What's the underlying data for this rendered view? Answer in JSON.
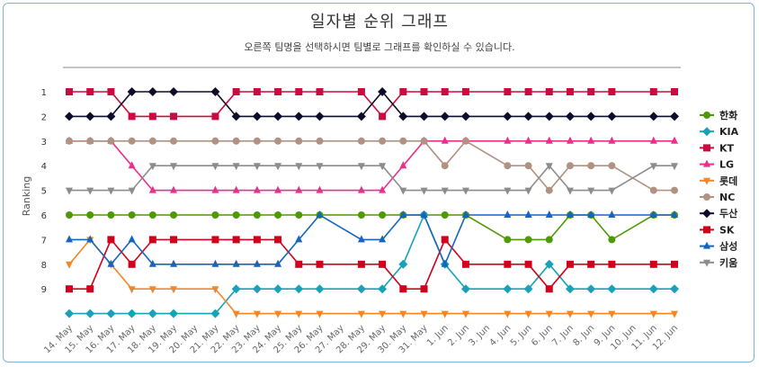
{
  "chart_data": {
    "type": "line",
    "title": "일자별 순위 그래프",
    "subtitle": "오른쪽 팀명을 선택하시면 팀별로 그래프를 확인하실 수 있습니다.",
    "ylabel": "Ranking",
    "y_ticks": [
      1,
      2,
      3,
      4,
      5,
      6,
      7,
      8,
      9
    ],
    "ylim": [
      1,
      10
    ],
    "y_reversed": true,
    "legend_position": "right",
    "categories": [
      "14. May",
      "15. May",
      "16. May",
      "17. May",
      "18. May",
      "19. May",
      "20. May",
      "21. May",
      "22. May",
      "23. May",
      "24. May",
      "25. May",
      "26. May",
      "27. May",
      "28. May",
      "29. May",
      "30. May",
      "31. May",
      "1. Jun",
      "2. Jun",
      "3. Jun",
      "4. Jun",
      "5. Jun",
      "6. Jun",
      "7. Jun",
      "8. Jun",
      "9. Jun",
      "10. Jun",
      "11. Jun",
      "12. Jun"
    ],
    "series": [
      {
        "name": "한화",
        "color": "#4e9a06",
        "marker": "circle",
        "values": [
          6,
          6,
          6,
          6,
          6,
          6,
          null,
          6,
          6,
          6,
          6,
          6,
          6,
          null,
          6,
          6,
          6,
          6,
          6,
          6,
          null,
          7,
          7,
          7,
          6,
          6,
          7,
          null,
          6,
          6
        ]
      },
      {
        "name": "KIA",
        "color": "#17a2b8",
        "marker": "diamond",
        "values": [
          10,
          10,
          10,
          10,
          10,
          10,
          null,
          10,
          9,
          9,
          9,
          9,
          9,
          null,
          9,
          9,
          8,
          6,
          8,
          9,
          null,
          9,
          9,
          8,
          9,
          9,
          9,
          null,
          9,
          9
        ]
      },
      {
        "name": "KT",
        "color": "#cc0a3f",
        "marker": "square",
        "values": [
          1,
          1,
          1,
          2,
          2,
          2,
          null,
          2,
          1,
          1,
          1,
          1,
          1,
          null,
          1,
          2,
          1,
          1,
          1,
          1,
          null,
          1,
          1,
          1,
          1,
          1,
          1,
          null,
          1,
          1
        ]
      },
      {
        "name": "LG",
        "color": "#e8318a",
        "marker": "triangle",
        "values": [
          3,
          3,
          3,
          4,
          5,
          5,
          null,
          5,
          5,
          5,
          5,
          5,
          5,
          null,
          5,
          5,
          4,
          3,
          3,
          3,
          null,
          3,
          3,
          3,
          3,
          3,
          3,
          null,
          3,
          3
        ]
      },
      {
        "name": "롯데",
        "color": "#f0882b",
        "marker": "triangle-down",
        "values": [
          8,
          7,
          8,
          9,
          9,
          9,
          null,
          9,
          10,
          10,
          10,
          10,
          10,
          null,
          10,
          10,
          10,
          10,
          10,
          10,
          null,
          10,
          10,
          10,
          10,
          10,
          10,
          null,
          10,
          10
        ]
      },
      {
        "name": "NC",
        "color": "#b09282",
        "marker": "circle",
        "values": [
          3,
          3,
          3,
          3,
          3,
          3,
          null,
          3,
          3,
          3,
          3,
          3,
          3,
          null,
          3,
          3,
          3,
          3,
          4,
          3,
          null,
          4,
          4,
          5,
          4,
          4,
          4,
          null,
          5,
          5
        ]
      },
      {
        "name": "두산",
        "color": "#0d0d2b",
        "marker": "diamond",
        "values": [
          2,
          2,
          2,
          1,
          1,
          1,
          null,
          1,
          2,
          2,
          2,
          2,
          2,
          null,
          2,
          1,
          2,
          2,
          2,
          2,
          null,
          2,
          2,
          2,
          2,
          2,
          2,
          null,
          2,
          2
        ]
      },
      {
        "name": "SK",
        "color": "#d0021b",
        "marker": "square",
        "values": [
          9,
          9,
          7,
          8,
          7,
          7,
          null,
          7,
          7,
          7,
          7,
          8,
          8,
          null,
          8,
          8,
          9,
          9,
          7,
          8,
          null,
          8,
          8,
          9,
          8,
          8,
          8,
          null,
          8,
          8
        ]
      },
      {
        "name": "삼성",
        "color": "#1565c0",
        "marker": "triangle",
        "values": [
          7,
          7,
          8,
          7,
          8,
          8,
          null,
          8,
          8,
          8,
          8,
          7,
          6,
          null,
          7,
          7,
          6,
          6,
          8,
          6,
          null,
          6,
          6,
          6,
          6,
          6,
          6,
          null,
          6,
          6
        ]
      },
      {
        "name": "키움",
        "color": "#8c8c8c",
        "marker": "triangle-down",
        "values": [
          5,
          5,
          5,
          5,
          4,
          4,
          null,
          4,
          4,
          4,
          4,
          4,
          4,
          null,
          4,
          4,
          5,
          5,
          5,
          5,
          null,
          5,
          5,
          4,
          5,
          5,
          5,
          null,
          4,
          4
        ]
      }
    ]
  }
}
